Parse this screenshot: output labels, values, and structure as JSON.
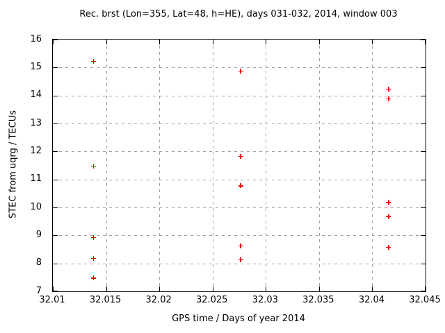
{
  "chart_data": {
    "type": "scatter",
    "title": "Rec. brst (Lon=355, Lat=48, h=HE), days 031-032, 2014, window 003",
    "xlabel": "GPS time / Days of year 2014",
    "ylabel": "STEC from uqrg / TECUs",
    "xlim": [
      32.01,
      32.045
    ],
    "ylim": [
      7,
      16
    ],
    "xtick_labels": [
      "32.01",
      "32.015",
      "32.02",
      "32.025",
      "32.03",
      "32.035",
      "32.04",
      "32.045"
    ],
    "ytick_labels": [
      "7",
      "8",
      "9",
      "10",
      "11",
      "12",
      "13",
      "14",
      "15",
      "16"
    ],
    "grid": true,
    "legend_position": "none",
    "marker": "plus",
    "colors": {
      "marker": "#ee0000",
      "grid": "#a0a0a0",
      "axis": "#000000",
      "background": "#ffffff"
    },
    "series": [
      {
        "name": "STEC from uqrg",
        "points": [
          [
            32.0139,
            15.2
          ],
          [
            32.0139,
            11.45
          ],
          [
            32.0139,
            8.9
          ],
          [
            32.0139,
            8.15
          ],
          [
            32.0139,
            7.45
          ],
          [
            32.0277,
            14.85
          ],
          [
            32.0277,
            11.8
          ],
          [
            32.0277,
            10.75
          ],
          [
            32.0277,
            8.6
          ],
          [
            32.0277,
            8.1
          ],
          [
            32.0416,
            14.2
          ],
          [
            32.0416,
            13.85
          ],
          [
            32.0416,
            10.15
          ],
          [
            32.0416,
            9.65
          ],
          [
            32.0416,
            8.55
          ]
        ]
      }
    ]
  }
}
